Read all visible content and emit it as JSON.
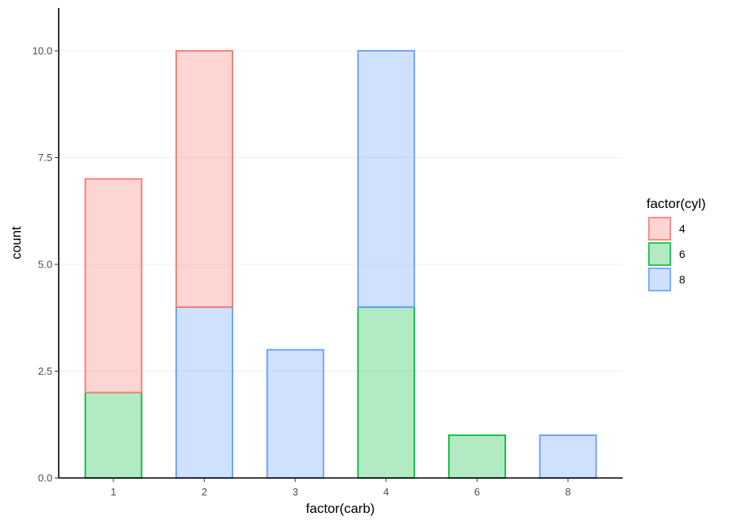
{
  "chart_data": {
    "type": "bar",
    "stacked": true,
    "categories": [
      "1",
      "2",
      "3",
      "4",
      "6",
      "8"
    ],
    "series": [
      {
        "name": "4",
        "values": [
          5,
          6,
          0,
          0,
          0,
          0
        ],
        "fill": "#f8766d",
        "stroke": "#f8766d"
      },
      {
        "name": "6",
        "values": [
          2,
          0,
          0,
          4,
          1,
          0
        ],
        "fill": "#00ba38",
        "stroke": "#00ba38"
      },
      {
        "name": "8",
        "values": [
          0,
          4,
          3,
          6,
          0,
          1
        ],
        "fill": "#619cff",
        "stroke": "#619cff"
      }
    ],
    "stack_order_bottom_to_top": [
      "6",
      "8",
      "4"
    ],
    "xlabel": "factor(carb)",
    "ylabel": "count",
    "ylim": [
      0,
      11
    ],
    "yticks": [
      0,
      2.5,
      5,
      7.5,
      10
    ],
    "ytick_labels": [
      "0.0",
      "2.5",
      "5.0",
      "7.5",
      "10.0"
    ],
    "fill_alpha": 0.3,
    "grid": true,
    "legend": {
      "title": "factor(cyl)",
      "position": "right",
      "entries": [
        "4",
        "6",
        "8"
      ]
    }
  }
}
